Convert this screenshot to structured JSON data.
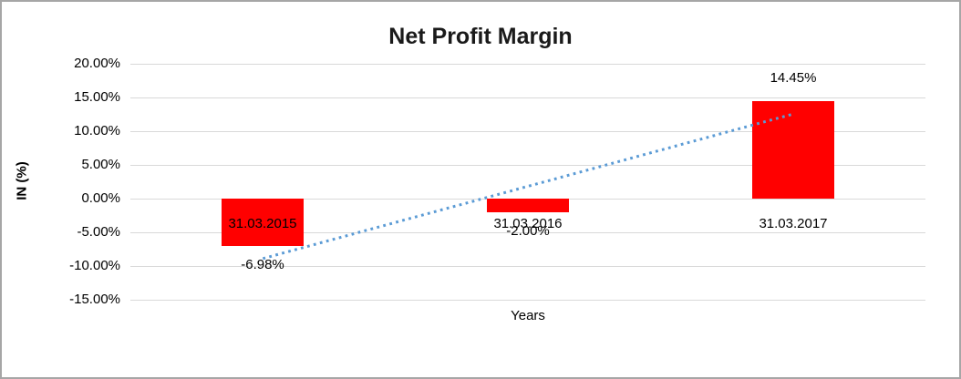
{
  "chart_data": {
    "type": "bar",
    "title": "Net Profit Margin",
    "xlabel": "Years",
    "ylabel": "IN (%)",
    "categories": [
      "31.03.2015",
      "31.03.2016",
      "31.03.2017"
    ],
    "values": [
      -6.98,
      -2.0,
      14.45
    ],
    "data_labels": [
      "-6.98%",
      "-2.00%",
      "14.45%"
    ],
    "ylim": [
      -15,
      20
    ],
    "ytick_values": [
      20,
      15,
      10,
      5,
      0,
      -5,
      -10,
      -15
    ],
    "ytick_labels": [
      "20.00%",
      "15.00%",
      "10.00%",
      "5.00%",
      "0.00%",
      "-5.00%",
      "-10.00%",
      "-15.00%"
    ],
    "grid": true,
    "legend": "none",
    "bar_color": "#FF0000",
    "gridline_color": "#D9D9D9",
    "text_color": "#000000",
    "trendline": {
      "type": "linear",
      "style": "dotted",
      "color": "#5B9BD5",
      "start_value": -8.89,
      "end_value": 12.54
    }
  }
}
